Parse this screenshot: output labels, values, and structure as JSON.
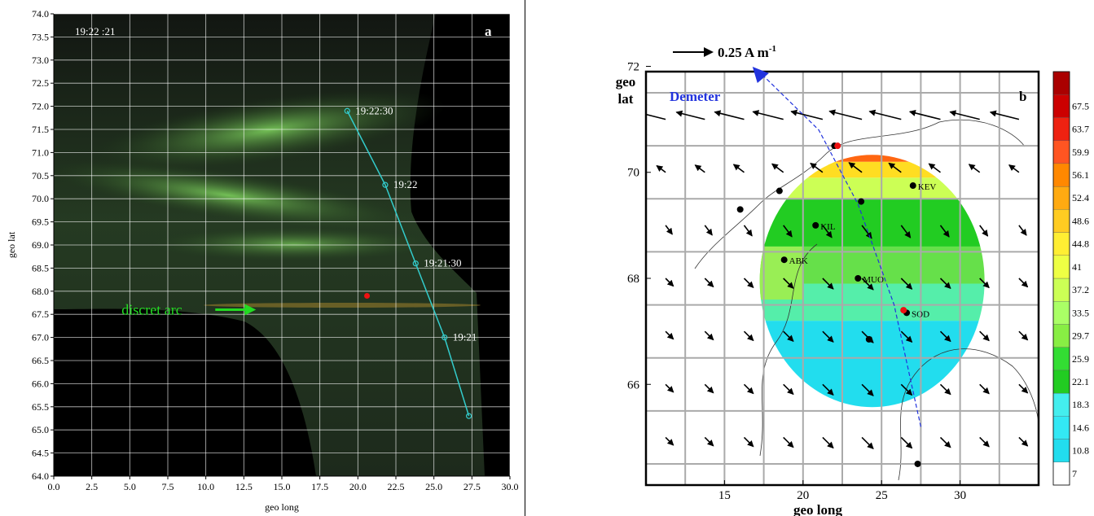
{
  "chart_data": [
    {
      "type": "scatter",
      "panel_label": "a",
      "time_stamp": "19:22 :21",
      "xlabel": "geo long",
      "ylabel": "geo lat",
      "xlim": [
        0,
        30
      ],
      "ylim": [
        64,
        74
      ],
      "x_ticks": [
        "0.0",
        "2.5",
        "5.0",
        "7.5",
        "10.0",
        "12.5",
        "15.0",
        "17.5",
        "20.0",
        "22.5",
        "25.0",
        "27.5",
        "30.0"
      ],
      "y_ticks": [
        "64.0",
        "64.5",
        "65.0",
        "65.5",
        "66.0",
        "66.5",
        "67.0",
        "67.5",
        "68.0",
        "68.5",
        "69.0",
        "69.5",
        "70.0",
        "70.5",
        "71.0",
        "71.5",
        "72.0",
        "72.5",
        "73.0",
        "73.5",
        "74.0"
      ],
      "series": [
        {
          "name": "Demeter track",
          "points": [
            {
              "x": 19.3,
              "y": 71.9,
              "label": "19:22:30"
            },
            {
              "x": 21.8,
              "y": 70.3,
              "label": "19:22"
            },
            {
              "x": 23.8,
              "y": 68.6,
              "label": "19:21:30"
            },
            {
              "x": 25.7,
              "y": 67.0,
              "label": "19:21"
            },
            {
              "x": 27.3,
              "y": 65.3,
              "label": ""
            }
          ]
        },
        {
          "name": "",
          "points": [
            {
              "x": 20.6,
              "y": 67.9
            }
          ]
        }
      ],
      "annotation": {
        "text": "discret arc",
        "x": 13.3,
        "y": 67.6
      },
      "colors": {
        "track": "#33cccc",
        "arc": "#22dd22",
        "marker": "#ee1111"
      }
    },
    {
      "type": "heatmap",
      "panel_label": "b",
      "scale_label": "0.25 A m",
      "scale_exp": "-1",
      "xlabel": "geo long",
      "ylabel_line1": "geo",
      "ylabel_line2": "lat",
      "xlim": [
        10,
        35
      ],
      "ylim": [
        64.1,
        71.9
      ],
      "x_ticks": [
        15,
        20,
        25,
        30
      ],
      "y_ticks": [
        66,
        68,
        70,
        72
      ],
      "track_label": "Demeter",
      "track": [
        [
          27.5,
          65.2
        ],
        [
          25.8,
          67.5
        ],
        [
          23.5,
          69.4
        ],
        [
          21,
          70.8
        ],
        [
          17.2,
          71.9
        ]
      ],
      "stations": [
        {
          "name": "KEV",
          "lon": 27.0,
          "lat": 69.75
        },
        {
          "name": "KIL",
          "lon": 20.8,
          "lat": 69.0
        },
        {
          "name": "ABK",
          "lon": 18.8,
          "lat": 68.35
        },
        {
          "name": "MUO",
          "lon": 23.5,
          "lat": 68.0
        },
        {
          "name": "SOD",
          "lon": 26.6,
          "lat": 67.35
        }
      ],
      "extra_points": [
        [
          22.0,
          70.5
        ],
        [
          18.5,
          69.65
        ],
        [
          16.0,
          69.3
        ],
        [
          23.7,
          69.45
        ],
        [
          24.2,
          66.85
        ],
        [
          27.3,
          64.5
        ]
      ],
      "red_points": [
        [
          22.2,
          70.5
        ],
        [
          26.4,
          67.4
        ]
      ],
      "colorbar": {
        "labels": [
          "7",
          "10.8",
          "14.6",
          "18.3",
          "22.1",
          "25.9",
          "29.7",
          "33.5",
          "37.2",
          "41",
          "44.8",
          "48.6",
          "52.4",
          "56.1",
          "59.9",
          "63.7",
          "67.5"
        ],
        "colors": [
          "#ffffff",
          "#22ddee",
          "#33e8f4",
          "#44eeee",
          "#22cc22",
          "#33dd33",
          "#88ee44",
          "#aaff66",
          "#ccff55",
          "#eeff44",
          "#ffee33",
          "#ffcc22",
          "#ffaa11",
          "#ff8800",
          "#ff5522",
          "#ee2211",
          "#cc0000",
          "#aa0000"
        ]
      },
      "colors": {
        "track": "#2233dd",
        "grid": "#aaaaaa"
      }
    }
  ]
}
